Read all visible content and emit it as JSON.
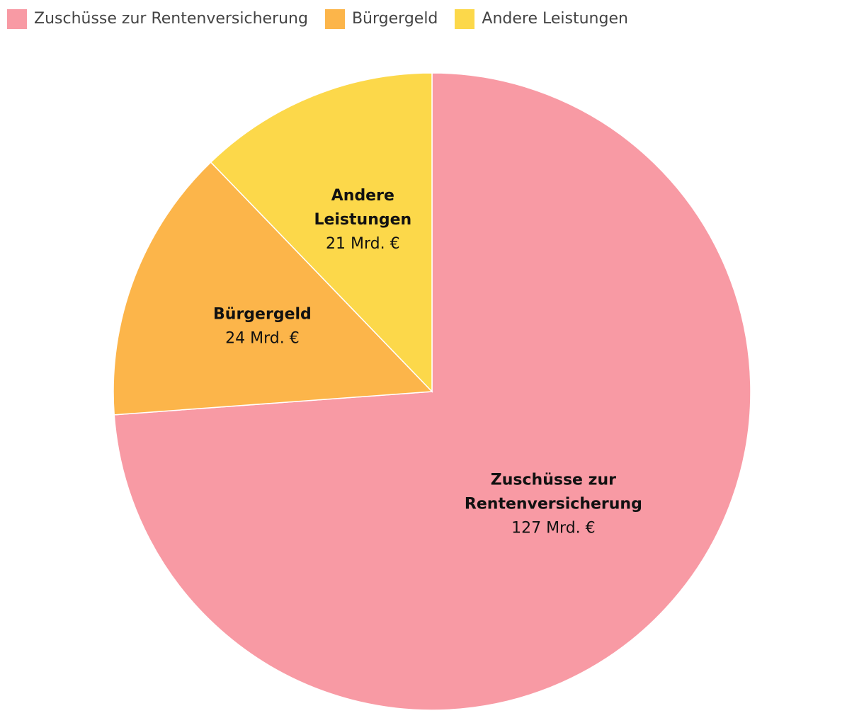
{
  "chart_data": {
    "type": "pie",
    "legend_position": "top-left",
    "unit": "Mrd. €",
    "slices": [
      {
        "label": "Zuschüsse zur Rentenversicherung",
        "label_lines": [
          "Zuschüsse zur",
          "Rentenversicherung"
        ],
        "value": 127,
        "value_text": "127 Mrd. €",
        "color": "#f89aa4"
      },
      {
        "label": "Bürgergeld",
        "label_lines": [
          "Bürgergeld"
        ],
        "value": 24,
        "value_text": "24 Mrd. €",
        "color": "#fcb54a"
      },
      {
        "label": "Andere Leistungen",
        "label_lines": [
          "Andere",
          "Leistungen"
        ],
        "value": 21,
        "value_text": "21 Mrd. €",
        "color": "#fcd84a"
      }
    ]
  }
}
